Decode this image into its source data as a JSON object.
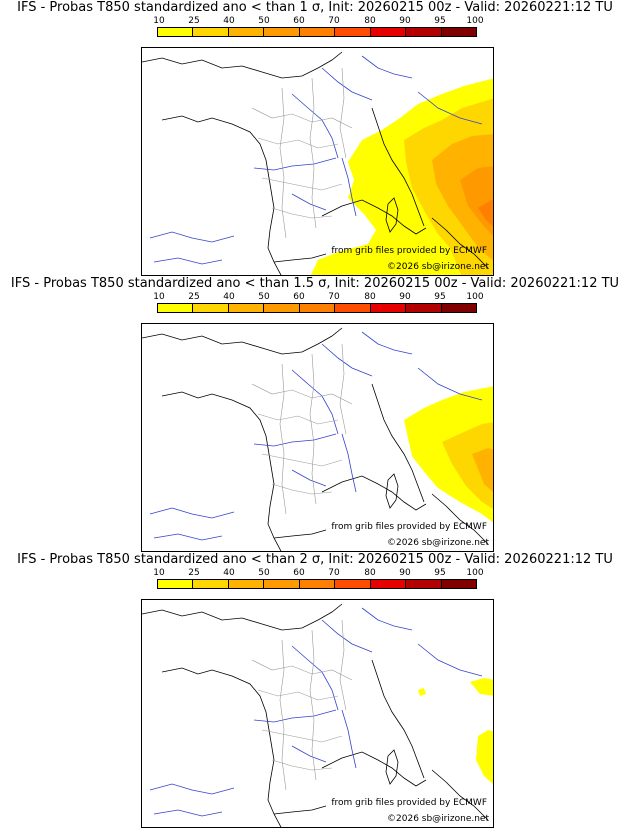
{
  "colorbar": {
    "ticks": [
      "10",
      "25",
      "40",
      "50",
      "60",
      "70",
      "80",
      "90",
      "95",
      "100"
    ],
    "colors": [
      "#ffff00",
      "#ffd700",
      "#ffb300",
      "#ff9900",
      "#ff7f00",
      "#ff4d00",
      "#e60000",
      "#b30000",
      "#800000"
    ]
  },
  "panels": [
    {
      "title": "IFS - Probas T850  standardized ano < than 1 σ, Init: 20260215 00z - Valid: 20260221:12 TU",
      "credit_source": "from grib files provided by ECMWF",
      "credit_copyright": "©2026 sb@irizone.net"
    },
    {
      "title": "IFS - Probas T850  standardized ano < than 1.5 σ, Init: 20260215 00z - Valid: 20260221:12 TU",
      "credit_source": "from grib files provided by ECMWF",
      "credit_copyright": "©2026 sb@irizone.net"
    },
    {
      "title": "IFS - Probas T850  standardized ano < than 2 σ, Init: 20260215 00z - Valid: 20260221:12 TU",
      "credit_source": "from grib files provided by ECMWF",
      "credit_copyright": "©2026 sb@irizone.net"
    }
  ]
}
